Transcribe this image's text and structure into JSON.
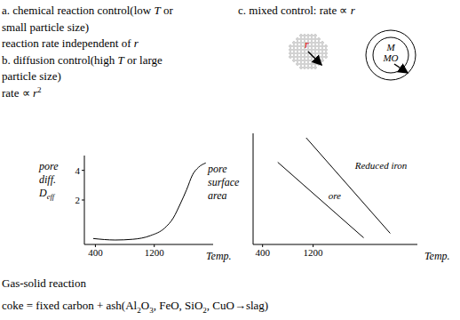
{
  "header": {
    "left": [
      [
        "a. chemical reaction control(low ",
        {
          "italic": "T"
        },
        " or"
      ],
      [
        "small particle size)"
      ],
      [
        "reaction rate independent of ",
        {
          "italic": "r"
        }
      ],
      [
        "b. diffusion control(high ",
        {
          "italic": "T"
        },
        " or large"
      ],
      [
        "particle size)"
      ],
      [
        "rate ∝ ",
        {
          "italic": "r"
        },
        {
          "sup": "2"
        }
      ]
    ],
    "right": [
      [
        "c. mixed control: rate ∝ ",
        {
          "italic": "r"
        }
      ]
    ],
    "icons": {
      "radius_label": "r",
      "core_label": "M",
      "shell_label": "MO"
    }
  },
  "chart_data": [
    {
      "type": "line",
      "ylabel": [
        [
          "pore"
        ],
        [
          "diff."
        ],
        [
          "D",
          {
            "sub": "eff"
          }
        ]
      ],
      "xlabel": "Temp.",
      "xlim": [
        250,
        2000
      ],
      "xticks": [
        400,
        1200
      ],
      "ylim": [
        -1,
        5
      ],
      "yticks": [
        2,
        4
      ],
      "grid": false,
      "series": [
        {
          "color": "#000000",
          "x": [
            370,
            670,
            910,
            1150,
            1340,
            1460,
            1550,
            1640,
            1720,
            1800,
            1900
          ],
          "values": [
            -0.6,
            -0.7,
            -0.65,
            -0.4,
            0.1,
            0.8,
            1.7,
            2.7,
            3.7,
            4.2,
            4.5
          ]
        }
      ]
    },
    {
      "type": "line",
      "ylabel": [
        [
          "pore"
        ],
        [
          "surface"
        ],
        [
          "area"
        ]
      ],
      "xlabel": "Temp.",
      "xlim": [
        250,
        2850
      ],
      "xticks": [
        400,
        1200
      ],
      "ylim": [
        0,
        10
      ],
      "tick_labels": "x",
      "grid": false,
      "series": [
        {
          "name": "Reduced iron",
          "color": "#000000",
          "x": [
            1090,
            2420
          ],
          "values": [
            9.6,
            1.0
          ]
        },
        {
          "name": "ore",
          "color": "#000000",
          "x": [
            640,
            2000
          ],
          "values": [
            7.4,
            0.6
          ]
        }
      ]
    }
  ],
  "footer": [
    [
      "Gas-solid reaction"
    ],
    [
      "coke = fixed carbon + ash(Al",
      {
        "sub": "2"
      },
      "O",
      {
        "sub": "3"
      },
      ", FeO, SiO",
      {
        "sub": "2"
      },
      ", CuO→slag)"
    ]
  ]
}
